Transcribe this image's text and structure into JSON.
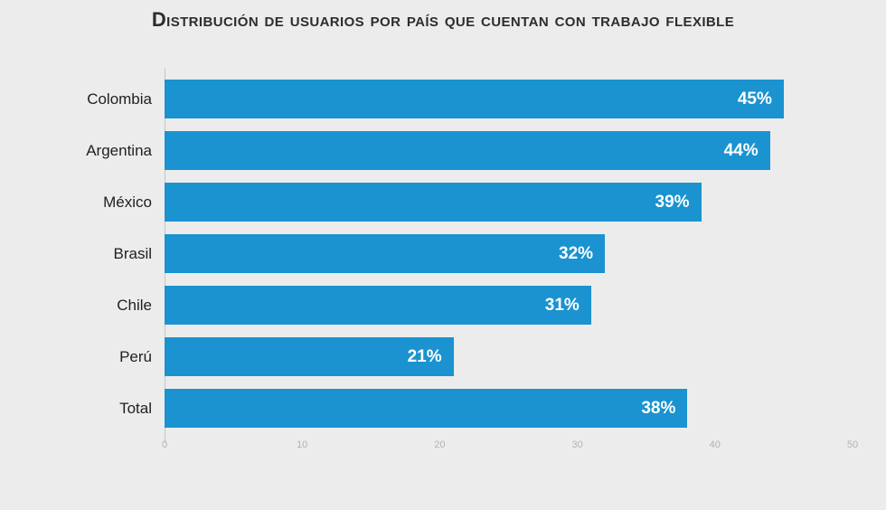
{
  "page": {
    "background": "#ececec"
  },
  "chart_data": {
    "type": "bar",
    "orientation": "horizontal",
    "title": "Distribución de usuarios por país que cuentan con trabajo flexible",
    "categories": [
      "Colombia",
      "Argentina",
      "México",
      "Brasil",
      "Chile",
      "Perú",
      "Total"
    ],
    "values": [
      45,
      44,
      39,
      32,
      31,
      21,
      38
    ],
    "value_labels": [
      "45%",
      "44%",
      "39%",
      "32%",
      "31%",
      "21%",
      "38%"
    ],
    "x_ticks": [
      0,
      10,
      20,
      30,
      40,
      50
    ],
    "xlim": [
      0,
      50
    ],
    "grid": false,
    "legend": "none",
    "bar_color": "#1a93d0",
    "value_label_color": "#ffffff",
    "axis_line_color": "#c6c6c6",
    "tick_label_color": "#b3b3b3"
  }
}
